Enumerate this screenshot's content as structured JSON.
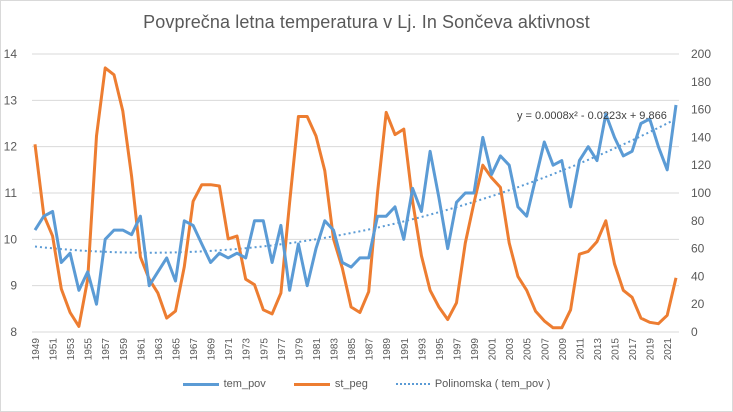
{
  "chart_data": {
    "type": "line",
    "title": "Povprečna letna temperatura v Lj. In Sončeva aktivnost",
    "xlabel": "",
    "ylabel": "",
    "y2label": "",
    "ylim": [
      8,
      14
    ],
    "y2lim": [
      0,
      200
    ],
    "yticks": [
      "8",
      "9",
      "10",
      "11",
      "12",
      "13",
      "14"
    ],
    "y2ticks": [
      "0",
      "20",
      "40",
      "60",
      "80",
      "100",
      "120",
      "140",
      "160",
      "180",
      "200"
    ],
    "grid": true,
    "legend_position": "bottom",
    "x": [
      1949,
      1950,
      1951,
      1952,
      1953,
      1954,
      1955,
      1956,
      1957,
      1958,
      1959,
      1960,
      1961,
      1962,
      1963,
      1964,
      1965,
      1966,
      1967,
      1968,
      1969,
      1970,
      1971,
      1972,
      1973,
      1974,
      1975,
      1976,
      1977,
      1978,
      1979,
      1980,
      1981,
      1982,
      1983,
      1984,
      1985,
      1986,
      1987,
      1988,
      1989,
      1990,
      1991,
      1992,
      1993,
      1994,
      1995,
      1996,
      1997,
      1998,
      1999,
      2000,
      2001,
      2002,
      2003,
      2004,
      2005,
      2006,
      2007,
      2008,
      2009,
      2010,
      2011,
      2012,
      2013,
      2014,
      2015,
      2016,
      2017,
      2018,
      2019,
      2020,
      2021,
      2022
    ],
    "xtick_labels": [
      "1949",
      "1951",
      "1953",
      "1955",
      "1957",
      "1959",
      "1961",
      "1963",
      "1965",
      "1967",
      "1969",
      "1971",
      "1973",
      "1975",
      "1977",
      "1979",
      "1981",
      "1983",
      "1985",
      "1987",
      "1989",
      "1991",
      "1993",
      "1995",
      "1997",
      "1999",
      "2001",
      "2003",
      "2005",
      "2007",
      "2009",
      "2011",
      "2013",
      "2015",
      "2017",
      "2019",
      "2021"
    ],
    "series": [
      {
        "name": "tem_pov",
        "axis": "left",
        "color": "#5b9bd5",
        "values": [
          10.2,
          10.5,
          10.6,
          9.5,
          9.7,
          8.9,
          9.3,
          8.6,
          10.0,
          10.2,
          10.2,
          10.1,
          10.5,
          9.0,
          9.3,
          9.6,
          9.1,
          10.4,
          10.3,
          9.9,
          9.5,
          9.7,
          9.6,
          9.7,
          9.6,
          10.4,
          10.4,
          9.5,
          10.3,
          8.9,
          9.9,
          9.0,
          9.8,
          10.4,
          10.2,
          9.5,
          9.4,
          9.6,
          9.6,
          10.5,
          10.5,
          10.7,
          10.0,
          11.1,
          10.6,
          11.9,
          10.9,
          9.8,
          10.8,
          11.0,
          11.0,
          12.2,
          11.4,
          11.8,
          11.6,
          10.7,
          10.5,
          11.3,
          12.1,
          11.6,
          11.7,
          10.7,
          11.7,
          12.0,
          11.7,
          12.7,
          12.2,
          11.8,
          11.9,
          12.5,
          12.6,
          12.0,
          11.5,
          12.9
        ]
      },
      {
        "name": "st_peg",
        "axis": "right",
        "color": "#ed7d31",
        "values": [
          135,
          84,
          69,
          31,
          14,
          4,
          38,
          141,
          190,
          185,
          159,
          112,
          54,
          38,
          28,
          10,
          15,
          47,
          94,
          106,
          106,
          105,
          67,
          69,
          38,
          34,
          16,
          13,
          28,
          93,
          155,
          155,
          141,
          116,
          67,
          46,
          18,
          14,
          29,
          100,
          158,
          142,
          146,
          94,
          55,
          30,
          18,
          9,
          21,
          64,
          93,
          120,
          111,
          104,
          64,
          40,
          30,
          15,
          8,
          3,
          3,
          16,
          56,
          58,
          65,
          80,
          49,
          30,
          25,
          10,
          7,
          6,
          12,
          39
        ]
      },
      {
        "name": "Polinomska ( tem_pov )",
        "axis": "left",
        "color": "#5b9bd5",
        "style": "dotted",
        "trendline": {
          "type": "polynomial",
          "order": 2,
          "coefficients": [
            0.0008,
            -0.0223,
            9.866
          ]
        }
      }
    ],
    "annotations": [
      {
        "text": "y = 0.0008x² - 0.0223x + 9.866",
        "anchor": "trendline-end"
      }
    ]
  },
  "legend": {
    "items": [
      {
        "label": "tem_pov"
      },
      {
        "label": "st_peg"
      },
      {
        "label": "Polinomska ( tem_pov )"
      }
    ]
  }
}
